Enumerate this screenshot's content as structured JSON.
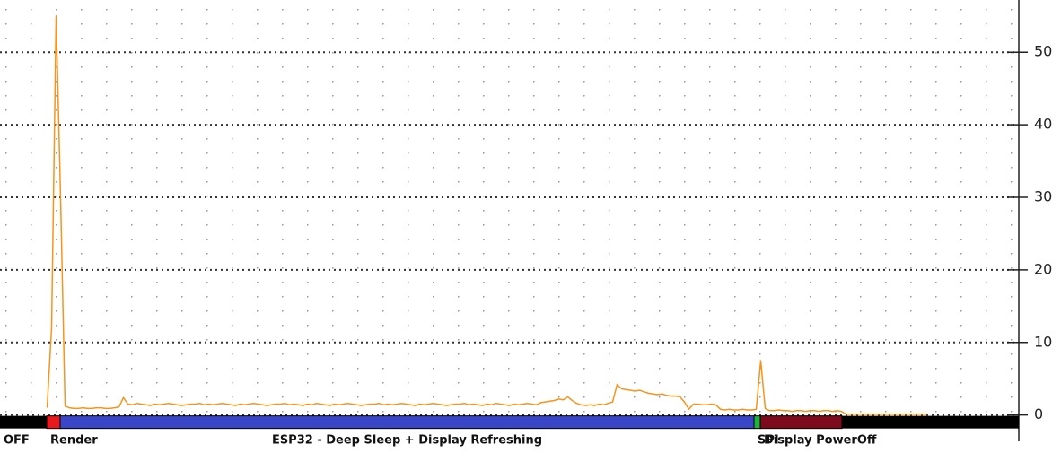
{
  "chart_data": {
    "type": "line",
    "series": [
      {
        "color": "#f7941d",
        "values": [
          null,
          null,
          null,
          null,
          null,
          null,
          null,
          null,
          null,
          null,
          1,
          12,
          55,
          30,
          1.2,
          1.0,
          0.9,
          0.9,
          1.0,
          0.9,
          0.9,
          1.0,
          1.0,
          0.9,
          0.9,
          1.0,
          1.1,
          2.4,
          1.5,
          1.4,
          1.6,
          1.5,
          1.4,
          1.3,
          1.5,
          1.4,
          1.5,
          1.6,
          1.5,
          1.4,
          1.3,
          1.4,
          1.5,
          1.5,
          1.6,
          1.4,
          1.5,
          1.4,
          1.5,
          1.6,
          1.5,
          1.4,
          1.3,
          1.5,
          1.4,
          1.5,
          1.6,
          1.5,
          1.4,
          1.3,
          1.4,
          1.5,
          1.5,
          1.6,
          1.4,
          1.5,
          1.4,
          1.3,
          1.5,
          1.4,
          1.6,
          1.5,
          1.4,
          1.3,
          1.5,
          1.4,
          1.5,
          1.6,
          1.5,
          1.4,
          1.3,
          1.4,
          1.5,
          1.5,
          1.6,
          1.4,
          1.5,
          1.4,
          1.5,
          1.6,
          1.5,
          1.4,
          1.3,
          1.5,
          1.4,
          1.5,
          1.6,
          1.5,
          1.4,
          1.3,
          1.4,
          1.5,
          1.5,
          1.6,
          1.4,
          1.5,
          1.4,
          1.3,
          1.5,
          1.4,
          1.6,
          1.5,
          1.4,
          1.3,
          1.5,
          1.4,
          1.5,
          1.6,
          1.5,
          1.4,
          1.7,
          1.8,
          1.9,
          2.0,
          2.2,
          2.1,
          2.5,
          2.0,
          1.6,
          1.4,
          1.3,
          1.4,
          1.3,
          1.5,
          1.4,
          1.6,
          1.8,
          4.2,
          3.6,
          3.5,
          3.4,
          3.3,
          3.4,
          3.2,
          3.0,
          2.9,
          2.8,
          2.9,
          2.7,
          2.6,
          2.6,
          2.5,
          1.8,
          0.8,
          1.5,
          1.5,
          1.4,
          1.4,
          1.5,
          1.4,
          0.8,
          0.7,
          0.8,
          0.7,
          0.7,
          0.8,
          0.7,
          0.7,
          0.8,
          7.5,
          0.9,
          0.6,
          0.6,
          0.7,
          0.6,
          0.6,
          0.5,
          0.6,
          0.6,
          0.5,
          0.6,
          0.6,
          0.5,
          0.6,
          0.6,
          0.5,
          0.6,
          0.5,
          0.1,
          0.1,
          0.1,
          0.1,
          0.1,
          0.1,
          0.1,
          0.1,
          0.1,
          0.1,
          0.1,
          0.1,
          0.1,
          0.1,
          0.1,
          0.1,
          0.1,
          0.1,
          0.1
        ]
      }
    ],
    "xlim": [
      0,
      227
    ],
    "ylim": [
      -4,
      57.2
    ],
    "yticks": [
      0,
      10,
      20,
      30,
      40,
      50
    ],
    "grid": true,
    "phases": [
      {
        "label": "OFF",
        "color": "#000000",
        "start": 0,
        "end": 10.4
      },
      {
        "label": "Render",
        "color": "#e8191c",
        "start": 10.4,
        "end": 13.4
      },
      {
        "label": "ESP32 - Deep Sleep + Display Refreshing",
        "color": "#3a46c8",
        "start": 13.4,
        "end": 168
      },
      {
        "label": "SPI",
        "color": "#1eb33c",
        "start": 168,
        "end": 169.4
      },
      {
        "label": "Display PowerOff",
        "color": "#7d0b1c",
        "start": 169.4,
        "end": 187.6
      },
      {
        "label": null,
        "color": "#000000",
        "start": 187.6,
        "end": 227
      }
    ]
  }
}
